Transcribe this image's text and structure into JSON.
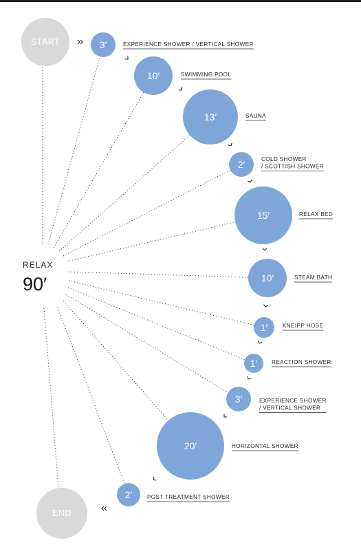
{
  "start_label": "START",
  "end_label": "END",
  "center": {
    "title": "RELAX",
    "time": "90′"
  },
  "bubble_color": "#7fa6d9",
  "terminal_color": "#d9d9d9",
  "steps": [
    {
      "time": "3′",
      "label_lines": [
        "EXPERIENCE SHOWER / VERTICAL SHOWER"
      ]
    },
    {
      "time": "10′",
      "label_lines": [
        "SWIMMING POOL"
      ]
    },
    {
      "time": "13′",
      "label_lines": [
        "SAUNA"
      ]
    },
    {
      "time": "2′",
      "label_lines": [
        "COLD SHOWER",
        "/ SCOTTISH SHOWER"
      ]
    },
    {
      "time": "15′",
      "label_lines": [
        "RELAX BED"
      ]
    },
    {
      "time": "10′",
      "label_lines": [
        "STEAM BATH"
      ]
    },
    {
      "time": "1′",
      "label_lines": [
        "KNEIPP HOSE"
      ]
    },
    {
      "time": "1′",
      "label_lines": [
        "REACTION SHOWER"
      ]
    },
    {
      "time": "3′",
      "label_lines": [
        "EXPERIENCE SHOWER",
        "/ VERTICAL SHOWER"
      ]
    },
    {
      "time": "20′",
      "label_lines": [
        "HORIZONTAL SHOWER"
      ]
    },
    {
      "time": "2′",
      "label_lines": [
        "POST TREATMENT SHOWER"
      ]
    }
  ]
}
